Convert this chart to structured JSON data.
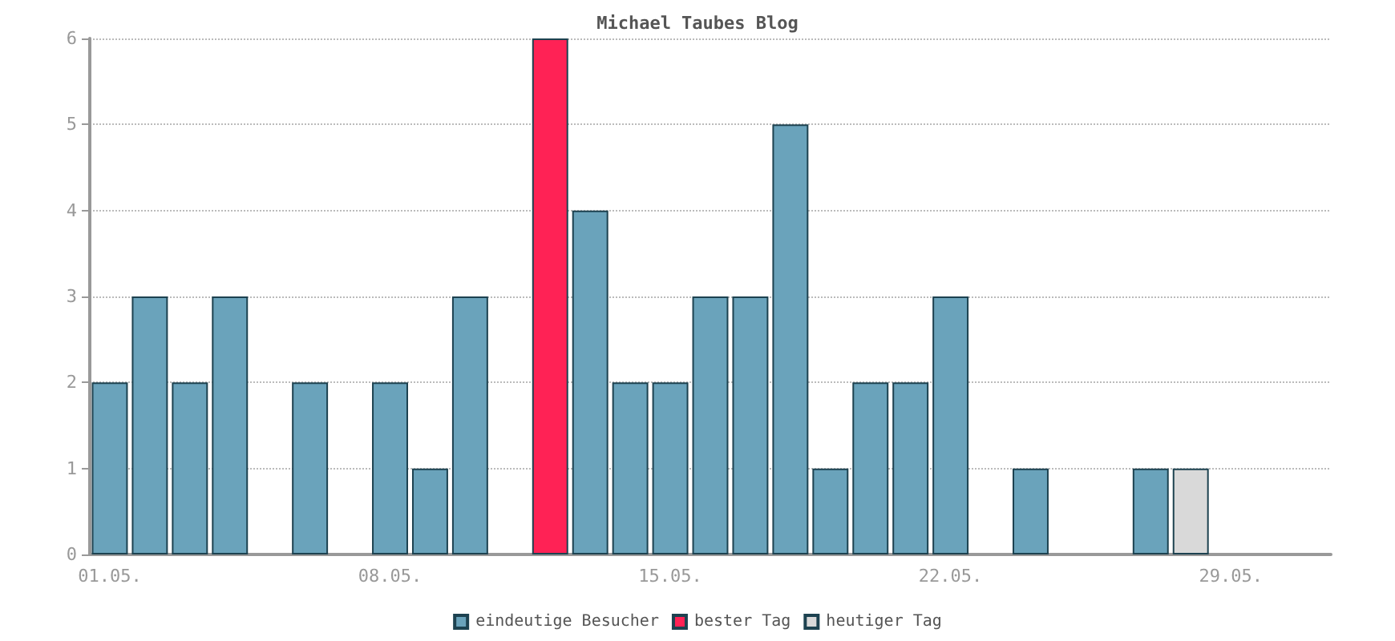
{
  "chart_data": {
    "type": "bar",
    "title": "Michael Taubes Blog",
    "stacked": true,
    "categories": [
      "01.05.",
      null,
      null,
      null,
      null,
      null,
      null,
      "08.05.",
      null,
      null,
      null,
      null,
      null,
      null,
      "15.05.",
      null,
      null,
      null,
      null,
      null,
      null,
      "22.05.",
      null,
      null,
      null,
      null,
      null,
      null,
      "29.05.",
      null,
      null
    ],
    "series": [
      {
        "name": "eindeutige Besucher",
        "color": "#6aa3bb",
        "values": [
          2,
          3,
          2,
          3,
          0,
          2,
          0,
          2,
          1,
          3,
          0,
          null,
          4,
          2,
          2,
          3,
          3,
          5,
          1,
          2,
          2,
          3,
          0,
          1,
          0,
          0,
          1,
          null,
          0,
          0,
          0
        ]
      },
      {
        "name": "bester Tag",
        "color": "#ff2255",
        "values": [
          null,
          null,
          null,
          null,
          null,
          null,
          null,
          null,
          null,
          null,
          null,
          6,
          null,
          null,
          null,
          null,
          null,
          null,
          null,
          null,
          null,
          null,
          null,
          null,
          null,
          null,
          null,
          null,
          null,
          null,
          null
        ]
      },
      {
        "name": "heutiger Tag",
        "color": "#d9d9d9",
        "values": [
          null,
          null,
          null,
          null,
          null,
          null,
          null,
          null,
          null,
          null,
          null,
          null,
          null,
          null,
          null,
          null,
          null,
          null,
          null,
          null,
          null,
          null,
          null,
          null,
          null,
          null,
          null,
          1,
          null,
          null,
          null
        ]
      }
    ],
    "ylim": [
      0,
      6
    ],
    "yticks": [
      0,
      1,
      2,
      3,
      4,
      5,
      6
    ],
    "grid": "y",
    "legend": "bottom"
  }
}
